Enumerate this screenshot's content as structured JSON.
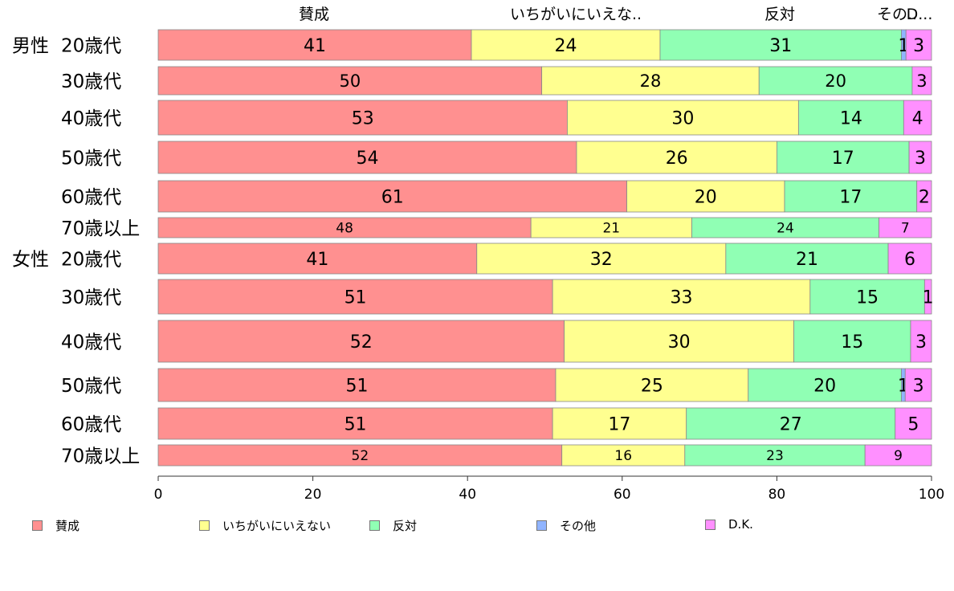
{
  "chart_data": {
    "type": "bar",
    "orientation": "horizontal",
    "stacked": true,
    "title": "",
    "xlabel": "",
    "ylabel": "",
    "xlim": [
      0,
      100
    ],
    "x_ticks": [
      0,
      20,
      40,
      60,
      80,
      100
    ],
    "grid": false,
    "legend_position": "bottom",
    "top_headers": [
      "賛成",
      "いちがいにいえな..",
      "反対",
      "その..",
      "D..."
    ],
    "groups": [
      {
        "label": "男性",
        "rows": [
          "20歳代",
          "30歳代",
          "40歳代",
          "50歳代",
          "60歳代",
          "70歳以上"
        ]
      },
      {
        "label": "女性",
        "rows": [
          "20歳代",
          "30歳代",
          "40歳代",
          "50歳代",
          "60歳代",
          "70歳以上"
        ]
      }
    ],
    "categories": [
      "20歳代",
      "30歳代",
      "40歳代",
      "50歳代",
      "60歳代",
      "70歳以上",
      "20歳代",
      "30歳代",
      "40歳代",
      "50歳代",
      "60歳代",
      "70歳以上"
    ],
    "series": [
      {
        "name": "賛成",
        "color": "#ff9090",
        "values": [
          40.5,
          49.6,
          52.9,
          54.1,
          60.6,
          48.2,
          41.2,
          51.0,
          52.5,
          51.4,
          51.0,
          52.2
        ],
        "labels": [
          "41",
          "50",
          "53",
          "54",
          "61",
          "48",
          "41",
          "51",
          "52",
          "51",
          "51",
          "52"
        ]
      },
      {
        "name": "いちがいにいえない",
        "color": "#ffff90",
        "values": [
          24.4,
          28.1,
          29.9,
          25.9,
          20.4,
          20.8,
          32.2,
          33.3,
          29.7,
          24.9,
          17.3,
          15.9
        ],
        "labels": [
          "24",
          "28",
          "30",
          "26",
          "20",
          "21",
          "32",
          "33",
          "30",
          "25",
          "17",
          "16"
        ]
      },
      {
        "name": "反対",
        "color": "#90ffb4",
        "values": [
          31.2,
          19.8,
          13.6,
          17.1,
          17.1,
          24.2,
          21.0,
          14.8,
          15.1,
          19.8,
          27.0,
          23.3
        ],
        "labels": [
          "31",
          "20",
          "14",
          "17",
          "17",
          "24",
          "21",
          "15",
          "15",
          "20",
          "27",
          "23"
        ]
      },
      {
        "name": "その他",
        "color": "#90b4ff",
        "values": [
          0.6,
          0.0,
          0.0,
          0.0,
          0.0,
          0.0,
          0.0,
          0.0,
          0.0,
          0.5,
          0.0,
          0.0
        ],
        "labels": [
          "1",
          "",
          "",
          "",
          "",
          "",
          "",
          "",
          "",
          "1",
          "",
          ""
        ]
      },
      {
        "name": "D.K.",
        "color": "#ff90ff",
        "values": [
          3.3,
          2.5,
          3.6,
          2.9,
          1.9,
          6.8,
          5.6,
          0.9,
          2.7,
          3.4,
          4.7,
          8.6
        ],
        "labels": [
          "3",
          "3",
          "4",
          "3",
          "2",
          "7",
          "6",
          "1",
          "3",
          "3",
          "5",
          "9"
        ]
      }
    ]
  }
}
